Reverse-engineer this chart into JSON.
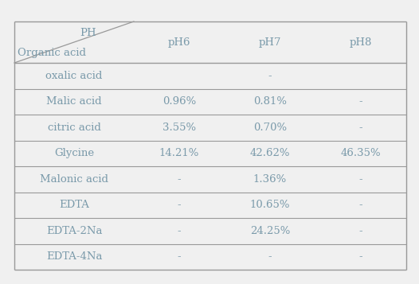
{
  "rows": [
    [
      "oxalic acid",
      "",
      "-",
      ""
    ],
    [
      "Malic acid",
      "0.96%",
      "0.81%",
      "-"
    ],
    [
      "citric acid",
      "3.55%",
      "0.70%",
      "-"
    ],
    [
      "Glycine",
      "14.21%",
      "42.62%",
      "46.35%"
    ],
    [
      "Malonic acid",
      "-",
      "1.36%",
      "-"
    ],
    [
      "EDTA",
      "-",
      "10.65%",
      "-"
    ],
    [
      "EDTA-2Na",
      "-",
      "24.25%",
      "-"
    ],
    [
      "EDTA-4Na",
      "-",
      "-",
      "-"
    ]
  ],
  "col_headers": [
    "pH6",
    "pH7",
    "pH8"
  ],
  "row_header": "Organic acid",
  "corner_top": "PH",
  "bg_color": "#f0f0f0",
  "text_color": "#7a9aaa",
  "line_color": "#999999",
  "font_size": 9.5,
  "figsize": [
    5.26,
    3.57
  ],
  "dpi": 100
}
